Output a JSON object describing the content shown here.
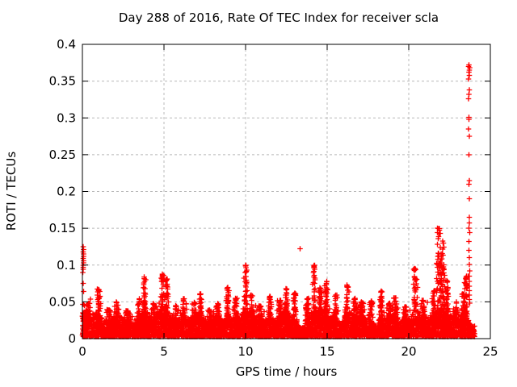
{
  "chart_data": {
    "type": "scatter",
    "title": "Day 288 of 2016, Rate Of TEC Index for receiver scla",
    "xlabel": "GPS time / hours",
    "ylabel": "ROTI / TECUs",
    "xlim": [
      0,
      25
    ],
    "ylim": [
      0,
      0.4
    ],
    "xticks": [
      0,
      5,
      10,
      15,
      20,
      25
    ],
    "xtick_labels": [
      "0",
      "5",
      "10",
      "15",
      "20",
      "25"
    ],
    "yticks": [
      0,
      0.05,
      0.1,
      0.15,
      0.2,
      0.25,
      0.3,
      0.35,
      0.4
    ],
    "ytick_labels": [
      "0",
      "0.05",
      "0.1",
      "0.15",
      "0.2",
      "0.25",
      "0.3",
      "0.35",
      "0.4"
    ],
    "grid": true,
    "legend": "none",
    "marker": "plus",
    "data_span_hours": [
      0,
      24.05
    ],
    "baseline_band": {
      "description": "dense quiet-time ROTI band covering the full day",
      "n_points": 5200,
      "y_floor": 0.0025,
      "typical_top": 0.03
    },
    "spikes": [
      {
        "t": 0.35,
        "peak": 0.048,
        "w": 0.1
      },
      {
        "t": 1.0,
        "peak": 0.068,
        "w": 0.07
      },
      {
        "t": 1.6,
        "peak": 0.04,
        "w": 0.1
      },
      {
        "t": 2.1,
        "peak": 0.05,
        "w": 0.08
      },
      {
        "t": 2.8,
        "peak": 0.038,
        "w": 0.1
      },
      {
        "t": 3.5,
        "peak": 0.055,
        "w": 0.06
      },
      {
        "t": 3.8,
        "peak": 0.085,
        "w": 0.05
      },
      {
        "t": 4.35,
        "peak": 0.048,
        "w": 0.08
      },
      {
        "t": 4.9,
        "peak": 0.088,
        "w": 0.05
      },
      {
        "t": 5.15,
        "peak": 0.082,
        "w": 0.05
      },
      {
        "t": 5.7,
        "peak": 0.045,
        "w": 0.08
      },
      {
        "t": 6.2,
        "peak": 0.055,
        "w": 0.07
      },
      {
        "t": 6.9,
        "peak": 0.05,
        "w": 0.08
      },
      {
        "t": 7.25,
        "peak": 0.062,
        "w": 0.05
      },
      {
        "t": 7.8,
        "peak": 0.04,
        "w": 0.1
      },
      {
        "t": 8.3,
        "peak": 0.048,
        "w": 0.08
      },
      {
        "t": 8.9,
        "peak": 0.07,
        "w": 0.04
      },
      {
        "t": 9.4,
        "peak": 0.055,
        "w": 0.06
      },
      {
        "t": 10.0,
        "peak": 0.1,
        "w": 0.05
      },
      {
        "t": 10.35,
        "peak": 0.06,
        "w": 0.06
      },
      {
        "t": 10.9,
        "peak": 0.045,
        "w": 0.08
      },
      {
        "t": 11.5,
        "peak": 0.058,
        "w": 0.07
      },
      {
        "t": 12.1,
        "peak": 0.052,
        "w": 0.07
      },
      {
        "t": 12.5,
        "peak": 0.068,
        "w": 0.05
      },
      {
        "t": 13.0,
        "peak": 0.062,
        "w": 0.06
      },
      {
        "t": 13.8,
        "peak": 0.055,
        "w": 0.07
      },
      {
        "t": 14.2,
        "peak": 0.1,
        "w": 0.05
      },
      {
        "t": 14.6,
        "peak": 0.07,
        "w": 0.05
      },
      {
        "t": 14.95,
        "peak": 0.078,
        "w": 0.05
      },
      {
        "t": 15.5,
        "peak": 0.06,
        "w": 0.07
      },
      {
        "t": 16.2,
        "peak": 0.073,
        "w": 0.05
      },
      {
        "t": 16.7,
        "peak": 0.055,
        "w": 0.07
      },
      {
        "t": 17.1,
        "peak": 0.05,
        "w": 0.08
      },
      {
        "t": 17.7,
        "peak": 0.052,
        "w": 0.07
      },
      {
        "t": 18.3,
        "peak": 0.065,
        "w": 0.05
      },
      {
        "t": 18.8,
        "peak": 0.048,
        "w": 0.07
      },
      {
        "t": 19.2,
        "peak": 0.056,
        "w": 0.05
      },
      {
        "t": 19.8,
        "peak": 0.045,
        "w": 0.08
      },
      {
        "t": 20.4,
        "peak": 0.098,
        "w": 0.06
      },
      {
        "t": 20.9,
        "peak": 0.052,
        "w": 0.07
      },
      {
        "t": 21.55,
        "peak": 0.065,
        "w": 0.06
      },
      {
        "t": 21.85,
        "peak": 0.15,
        "w": 0.08
      },
      {
        "t": 22.1,
        "peak": 0.135,
        "w": 0.07
      },
      {
        "t": 22.35,
        "peak": 0.08,
        "w": 0.06
      },
      {
        "t": 22.9,
        "peak": 0.05,
        "w": 0.08
      },
      {
        "t": 23.3,
        "peak": 0.062,
        "w": 0.06
      },
      {
        "t": 23.5,
        "peak": 0.085,
        "w": 0.05
      }
    ],
    "outlier_columns": [
      {
        "t": 0.06,
        "values": [
          0.125,
          0.121,
          0.118,
          0.115,
          0.112,
          0.109,
          0.106,
          0.103,
          0.1,
          0.097,
          0.094,
          0.09,
          0.075,
          0.064
        ]
      },
      {
        "t": 13.35,
        "values": [
          0.122
        ]
      },
      {
        "t": 23.7,
        "values": [
          0.372,
          0.37,
          0.368,
          0.365,
          0.362,
          0.358,
          0.353,
          0.338,
          0.332,
          0.326,
          0.301,
          0.298,
          0.285,
          0.275,
          0.25,
          0.215,
          0.21,
          0.19,
          0.165,
          0.157,
          0.15,
          0.144,
          0.132,
          0.12,
          0.11,
          0.101,
          0.092,
          0.085,
          0.078,
          0.071,
          0.065,
          0.059,
          0.053,
          0.048
        ]
      }
    ]
  },
  "style": {
    "point_color": "#ff0000",
    "grid_color": "#b8b8b8",
    "border_color": "#000000",
    "text_color": "#000000",
    "background": "#ffffff"
  }
}
